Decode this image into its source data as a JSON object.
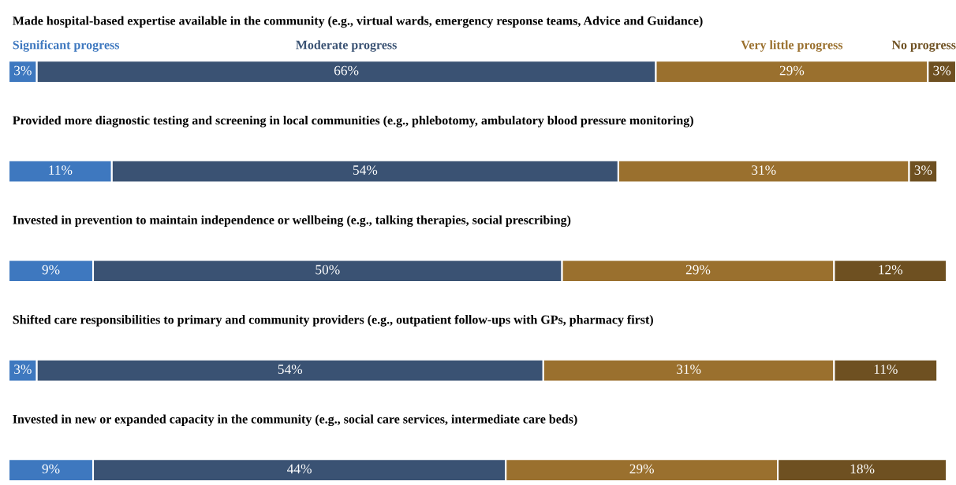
{
  "chart_data": {
    "type": "bar",
    "orientation": "horizontal",
    "stacked": true,
    "categories": [
      "Made hospital-based expertise available in the community (e.g., virtual wards, emergency response teams, Advice and Guidance)",
      "Provided more diagnostic testing and screening in local communities (e.g., phlebotomy, ambulatory blood pressure monitoring)",
      "Invested in prevention to maintain independence or wellbeing (e.g., talking therapies, social prescribing)",
      "Shifted care responsibilities to primary and community providers (e.g., outpatient follow-ups with GPs, pharmacy first)",
      "Invested in new or expanded capacity in the community (e.g., social care services, intermediate care beds)"
    ],
    "series": [
      {
        "name": "Significant progress",
        "color": "#3e78bf",
        "values": [
          3,
          11,
          9,
          3,
          9
        ],
        "value_labels": [
          "3%",
          "11%",
          "9%",
          "3%",
          "9%"
        ]
      },
      {
        "name": "Moderate progress",
        "color": "#3a5273",
        "values": [
          66,
          54,
          50,
          54,
          44
        ],
        "value_labels": [
          "66%",
          "54%",
          "50%",
          "54%",
          "44%"
        ]
      },
      {
        "name": "Very little progress",
        "color": "#9a702e",
        "values": [
          29,
          31,
          29,
          31,
          29
        ],
        "value_labels": [
          "29%",
          "31%",
          "29%",
          "31%",
          "29%"
        ]
      },
      {
        "name": "No progress",
        "color": "#6e5021",
        "values": [
          3,
          3,
          12,
          11,
          18
        ],
        "value_labels": [
          "3%",
          "3%",
          "12%",
          "11%",
          "18%"
        ]
      }
    ]
  }
}
